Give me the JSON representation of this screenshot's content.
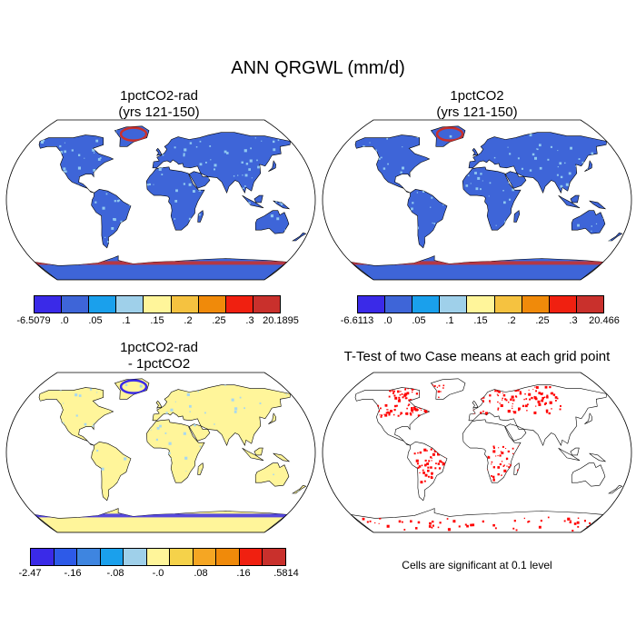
{
  "title": "ANN QRGWL (mm/d)",
  "panels": [
    {
      "id": "p1",
      "title_line1": "1pctCO2-rad",
      "title_line2": "(yrs 121-150)",
      "fill": "#3e65d8",
      "speckle": "#8fc8f0",
      "polar": "#c9302c",
      "type": "abs"
    },
    {
      "id": "p2",
      "title_line1": "1pctCO2",
      "title_line2": "(yrs 121-150)",
      "fill": "#3e65d8",
      "speckle": "#8fc8f0",
      "polar": "#c9302c",
      "type": "abs"
    },
    {
      "id": "p3",
      "title_line1": "1pctCO2-rad",
      "title_line2": "- 1pctCO2",
      "fill": "#fff59a",
      "speckle": "#a8d8f0",
      "polar": "#3a2ae8",
      "type": "diff"
    },
    {
      "id": "p4",
      "title_line1": "T-Test of two Case means at each grid point",
      "title_line2": "",
      "fill": "none",
      "speckle": "#ff0000",
      "polar": "#ff0000",
      "type": "ttest"
    }
  ],
  "colorbars": [
    {
      "id": "cb1",
      "colors": [
        "#3a2ae8",
        "#3e65d8",
        "#1aa0ec",
        "#9fd0ea",
        "#fff59a",
        "#f5c240",
        "#f08a0a",
        "#f02010",
        "#c9302c"
      ],
      "labels": [
        "-6.5079",
        ".0",
        ".05",
        ".1",
        ".15",
        ".2",
        ".25",
        ".3",
        "20.1895"
      ]
    },
    {
      "id": "cb2",
      "colors": [
        "#3a2ae8",
        "#3e65d8",
        "#1aa0ec",
        "#9fd0ea",
        "#fff59a",
        "#f5c240",
        "#f08a0a",
        "#f02010",
        "#c9302c"
      ],
      "labels": [
        "-6.6113",
        ".0",
        ".05",
        ".1",
        ".15",
        ".2",
        ".25",
        ".3",
        "20.466"
      ]
    },
    {
      "id": "cb3",
      "colors": [
        "#3a2ae8",
        "#2d5ae8",
        "#3e85e0",
        "#1aa0ec",
        "#9fd0ea",
        "#fff59a",
        "#f5d24a",
        "#f5a623",
        "#f08a0a",
        "#f02010",
        "#c9302c"
      ],
      "labels": [
        "-2.47",
        "-.16",
        "-.08",
        "-.0",
        ".08",
        ".16",
        ".5814"
      ]
    }
  ],
  "note": "Cells are significant at 0.1 level"
}
